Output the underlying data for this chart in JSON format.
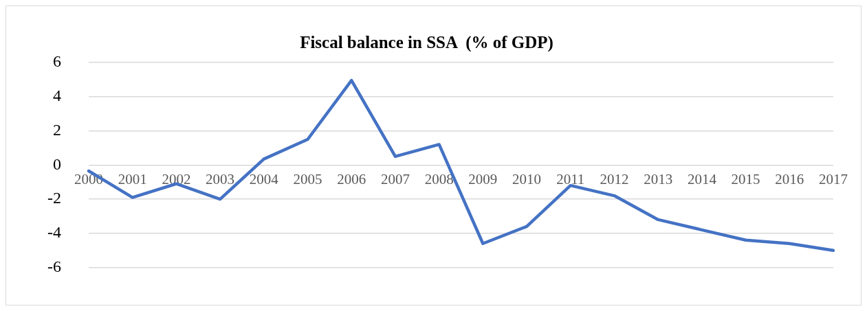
{
  "chart_data": {
    "type": "line",
    "title": "Fiscal balance in SSA  (% of GDP)",
    "categories": [
      "2000",
      "2001",
      "2002",
      "2003",
      "2004",
      "2005",
      "2006",
      "2007",
      "2008",
      "2009",
      "2010",
      "2011",
      "2012",
      "2013",
      "2014",
      "2015",
      "2016",
      "2017"
    ],
    "series": [
      {
        "color": "#4472c4",
        "values": [
          -0.35,
          -1.9,
          -1.1,
          -2.0,
          0.35,
          1.5,
          4.95,
          0.5,
          1.2,
          -4.6,
          -3.6,
          -1.2,
          -1.8,
          -3.2,
          -3.8,
          -4.4,
          -4.6,
          -5.0
        ]
      }
    ],
    "ylim": [
      -6,
      6
    ],
    "yticks": [
      -6,
      -4,
      -2,
      0,
      2,
      4,
      6
    ],
    "grid": "y",
    "legend": false,
    "marker": "none",
    "line_style": "solid"
  }
}
